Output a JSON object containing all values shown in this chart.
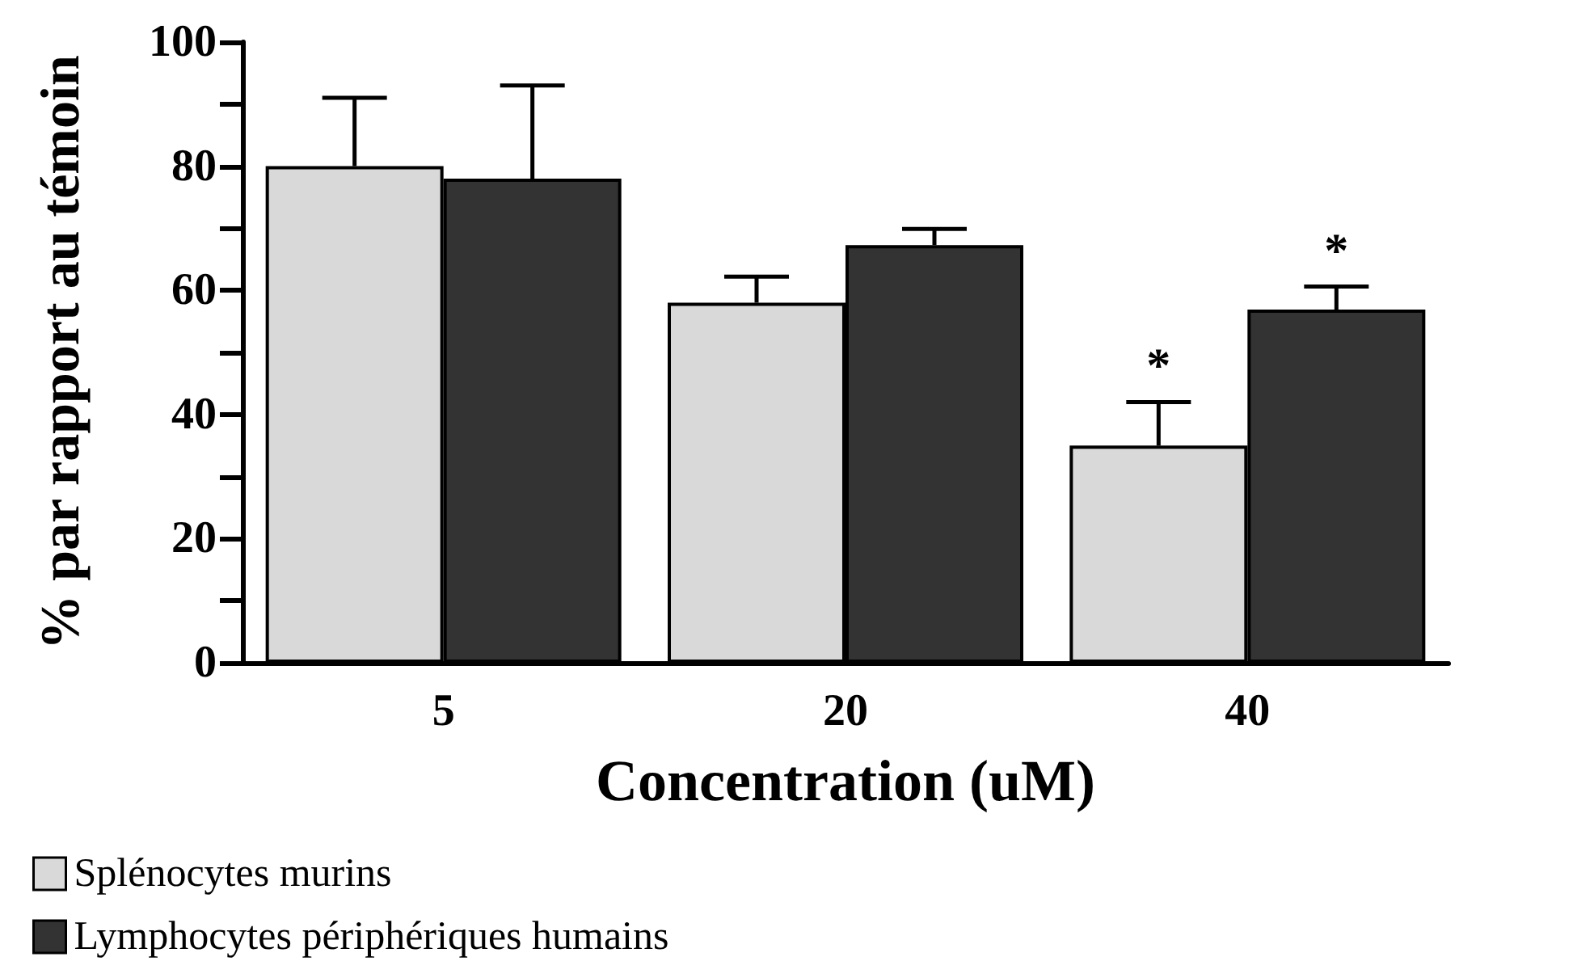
{
  "chart_data": {
    "type": "bar",
    "xlabel": "Concentration (uM)",
    "ylabel": "% par rapport au témoin",
    "categories": [
      "5",
      "20",
      "40"
    ],
    "series": [
      {
        "name": "Splénocytes murins",
        "color": "#d9d9d9",
        "values": [
          80,
          58,
          35
        ],
        "errors": [
          11,
          4.2,
          7
        ]
      },
      {
        "name": "Lymphocytes périphériques humains",
        "color": "#333333",
        "values": [
          78,
          67.3,
          56.9
        ],
        "errors": [
          15,
          2.6,
          3.7
        ]
      }
    ],
    "ylim": [
      0,
      100
    ],
    "yticks": [
      0,
      {
        "value": 10,
        "label": null
      },
      20,
      {
        "value": 30,
        "label": null
      },
      40,
      {
        "value": 50,
        "label": null
      },
      60,
      {
        "value": 70,
        "label": null
      },
      80,
      {
        "value": 90,
        "label": null
      },
      100
    ],
    "grid": false,
    "legend": "bottom left",
    "annotations": [
      {
        "text": "*",
        "x": "40",
        "y": 35
      },
      {
        "text": "*",
        "x": "40",
        "y": 56.9
      }
    ]
  }
}
